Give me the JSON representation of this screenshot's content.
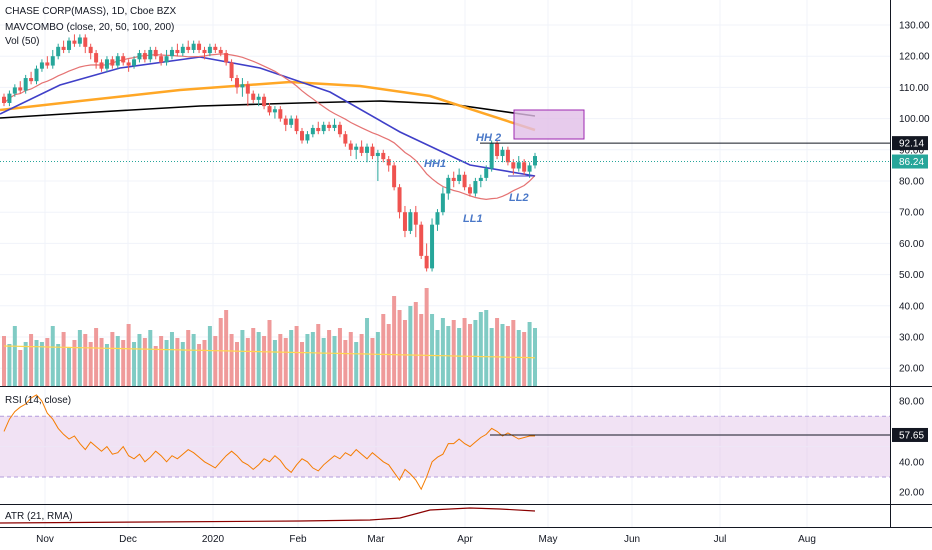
{
  "chart_data": {
    "type": "candlestick",
    "symbol_line": "CHASE CORP(MASS), 1D, Cboe BZX",
    "indicator_lines": [
      "MAVCOMBO (close, 20, 50, 100, 200)",
      "Vol (50)"
    ],
    "rsi_label": "RSI (14, close)",
    "atr_label": "ATR (21, RMA)",
    "price_axis_ticks": [
      "130.00",
      "120.00",
      "110.00",
      "100.00",
      "90.00",
      "80.00",
      "70.00",
      "60.00",
      "50.00",
      "40.00",
      "30.00",
      "20.00"
    ],
    "rsi_axis_ticks": [
      "80.00",
      "60.00",
      "40.00",
      "20.00"
    ],
    "x_axis_labels": [
      "Nov",
      "Dec",
      "2020",
      "Feb",
      "Mar",
      "Apr",
      "May",
      "Jun",
      "Jul",
      "Aug"
    ],
    "last_price": "86.24",
    "resistance_level": "92.14",
    "rsi_level": "57.65",
    "annotations": [
      "HH1",
      "HH 2",
      "LL1",
      "LL2"
    ],
    "price_range": [
      18,
      135
    ],
    "rsi_range": [
      10,
      90
    ],
    "candles": [
      [
        107,
        105,
        108,
        104
      ],
      [
        105,
        108,
        109,
        104
      ],
      [
        108,
        110,
        111,
        107
      ],
      [
        110,
        109,
        112,
        108
      ],
      [
        109,
        113,
        114,
        108
      ],
      [
        113,
        112,
        115,
        111
      ],
      [
        112,
        116,
        117,
        111
      ],
      [
        116,
        118,
        119,
        115
      ],
      [
        118,
        117,
        120,
        116
      ],
      [
        117,
        120,
        122,
        116
      ],
      [
        120,
        123,
        124,
        119
      ],
      [
        123,
        122,
        125,
        121
      ],
      [
        122,
        125,
        126,
        121
      ],
      [
        125,
        124,
        127,
        123
      ],
      [
        124,
        126,
        127,
        123
      ],
      [
        126,
        123,
        127,
        121
      ],
      [
        123,
        121,
        124,
        119
      ],
      [
        121,
        118,
        122,
        116
      ],
      [
        118,
        116,
        119,
        115
      ],
      [
        116,
        119,
        120,
        115
      ],
      [
        119,
        117,
        120,
        116
      ],
      [
        117,
        120,
        121,
        116
      ],
      [
        120,
        118,
        121,
        117
      ],
      [
        118,
        117,
        119,
        115
      ],
      [
        117,
        119,
        120,
        116
      ],
      [
        119,
        121,
        122,
        118
      ],
      [
        121,
        119,
        122,
        118
      ],
      [
        119,
        122,
        123,
        118
      ],
      [
        122,
        120,
        123,
        119
      ],
      [
        120,
        118,
        121,
        117
      ],
      [
        118,
        120,
        122,
        117
      ],
      [
        120,
        122,
        123,
        119
      ],
      [
        122,
        121,
        124,
        120
      ],
      [
        121,
        123,
        124,
        120
      ],
      [
        123,
        122,
        125,
        121
      ],
      [
        122,
        124,
        125,
        121
      ],
      [
        124,
        122,
        125,
        121
      ],
      [
        122,
        121,
        123,
        119
      ],
      [
        121,
        123,
        124,
        120
      ],
      [
        123,
        122,
        124,
        121
      ],
      [
        122,
        121,
        123,
        120
      ],
      [
        121,
        118,
        122,
        117
      ],
      [
        118,
        113,
        119,
        112
      ],
      [
        113,
        110,
        114,
        108
      ],
      [
        110,
        111,
        113,
        107
      ],
      [
        111,
        108,
        112,
        104
      ],
      [
        108,
        106,
        109,
        105
      ],
      [
        106,
        107,
        108,
        104
      ],
      [
        107,
        104,
        108,
        103
      ],
      [
        104,
        102,
        105,
        101
      ],
      [
        102,
        103,
        104,
        100
      ],
      [
        103,
        100,
        104,
        99
      ],
      [
        100,
        98,
        101,
        96
      ],
      [
        98,
        100,
        101,
        97
      ],
      [
        100,
        96,
        101,
        95
      ],
      [
        96,
        93,
        97,
        92
      ],
      [
        93,
        95,
        96,
        92
      ],
      [
        95,
        97,
        98,
        94
      ],
      [
        97,
        96,
        99,
        95
      ],
      [
        96,
        98,
        99,
        95
      ],
      [
        98,
        97,
        99,
        96
      ],
      [
        97,
        98,
        100,
        96
      ],
      [
        98,
        95,
        99,
        94
      ],
      [
        95,
        92,
        96,
        91
      ],
      [
        92,
        90,
        93,
        88
      ],
      [
        90,
        91,
        92,
        87
      ],
      [
        91,
        89,
        93,
        88
      ],
      [
        89,
        91,
        92,
        86
      ],
      [
        91,
        88,
        92,
        87
      ],
      [
        88,
        89,
        90,
        80
      ],
      [
        89,
        87,
        90,
        86
      ],
      [
        87,
        85,
        88,
        83
      ],
      [
        85,
        78,
        86,
        77
      ],
      [
        78,
        70,
        79,
        68
      ],
      [
        70,
        64,
        72,
        62
      ],
      [
        64,
        70,
        71,
        63
      ],
      [
        70,
        66,
        72,
        62
      ],
      [
        66,
        56,
        67,
        55
      ],
      [
        56,
        52,
        60,
        51
      ],
      [
        52,
        66,
        68,
        51
      ],
      [
        66,
        70,
        71,
        64
      ],
      [
        70,
        76,
        78,
        69
      ],
      [
        76,
        81,
        82,
        74
      ],
      [
        81,
        80,
        83,
        78
      ],
      [
        80,
        82,
        84,
        79
      ],
      [
        82,
        78,
        83,
        77
      ],
      [
        78,
        76,
        79,
        75
      ],
      [
        76,
        80,
        81,
        75
      ],
      [
        80,
        81,
        82,
        78
      ],
      [
        81,
        84,
        85,
        80
      ],
      [
        84,
        92,
        93,
        83
      ],
      [
        92,
        88,
        93,
        87
      ],
      [
        88,
        90,
        91,
        86
      ],
      [
        90,
        86,
        91,
        85
      ],
      [
        86,
        84,
        87,
        82
      ],
      [
        84,
        86,
        88,
        83
      ],
      [
        86,
        83,
        87,
        82
      ],
      [
        83,
        85,
        86,
        81
      ],
      [
        85,
        88,
        89,
        84
      ]
    ],
    "volumes": [
      25,
      21,
      30,
      18,
      22,
      26,
      23,
      22,
      24,
      30,
      21,
      27,
      19,
      23,
      28,
      26,
      22,
      29,
      24,
      21,
      27,
      25,
      23,
      31,
      22,
      26,
      24,
      28,
      20,
      25,
      23,
      27,
      24,
      22,
      28,
      26,
      21,
      23,
      30,
      25,
      34,
      38,
      26,
      22,
      28,
      24,
      29,
      27,
      25,
      33,
      23,
      26,
      24,
      28,
      30,
      22,
      26,
      27,
      31,
      24,
      28,
      25,
      29,
      23,
      27,
      22,
      26,
      34,
      24,
      27,
      36,
      31,
      45,
      38,
      33,
      40,
      42,
      36,
      49,
      36,
      28,
      34,
      30,
      33,
      29,
      34,
      31,
      33,
      37,
      38,
      29,
      34,
      31,
      30,
      33,
      28,
      27,
      32,
      29
    ],
    "rsi_values": [
      60,
      68,
      73,
      76,
      78,
      82,
      84,
      80,
      72,
      68,
      62,
      58,
      55,
      57,
      52,
      48,
      53,
      50,
      47,
      50,
      45,
      46,
      50,
      44,
      42,
      45,
      40,
      43,
      47,
      44,
      40,
      44,
      42,
      45,
      48,
      46,
      43,
      40,
      38,
      36,
      40,
      44,
      47,
      44,
      40,
      38,
      35,
      38,
      42,
      40,
      44,
      41,
      36,
      33,
      38,
      42,
      40,
      36,
      34,
      38,
      41,
      44,
      42,
      46,
      44,
      48,
      45,
      42,
      46,
      43,
      40,
      38,
      33,
      28,
      35,
      32,
      28,
      22,
      30,
      40,
      43,
      45,
      52,
      52,
      55,
      52,
      50,
      53,
      56,
      58,
      62,
      60,
      57,
      59,
      57,
      55,
      56,
      57,
      57
    ]
  }
}
